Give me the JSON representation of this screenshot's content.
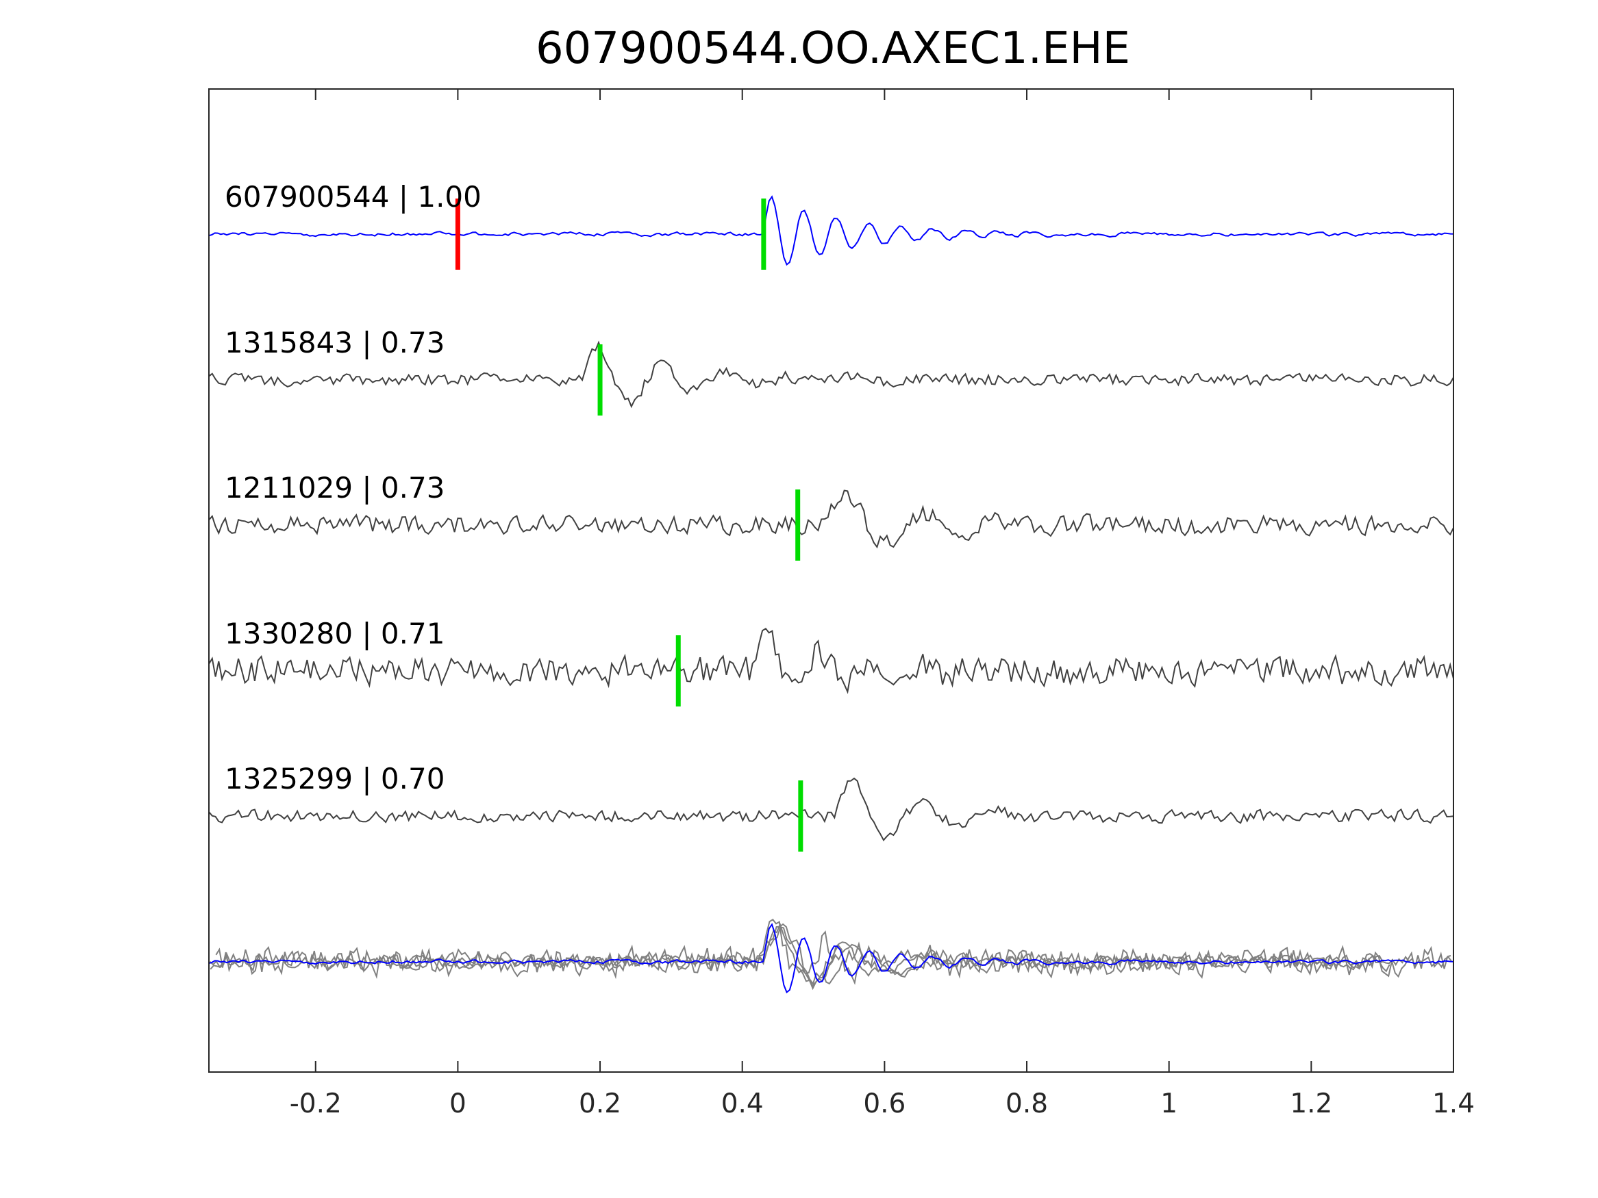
{
  "chart_data": {
    "type": "line",
    "title": "607900544.OO.AXEC1.EHE",
    "xlabel": "",
    "ylabel": "",
    "xlim": [
      -0.35,
      1.4
    ],
    "xticks": [
      -0.2,
      0,
      0.2,
      0.4,
      0.6,
      0.8,
      1,
      1.2,
      1.4
    ],
    "xtick_labels": [
      "-0.2",
      "0",
      "0.2",
      "0.4",
      "0.6",
      "0.8",
      "1",
      "1.2",
      "1.4"
    ],
    "grid": false,
    "legend": "none",
    "colors": {
      "template": "#0000ff",
      "match": "#404040",
      "overlay": "#808080",
      "origin_pick": "#ff0000",
      "phase_pick": "#00dd00",
      "axes": "#262626"
    },
    "traces": [
      {
        "id": "607900544",
        "score": "1.00",
        "label": "607900544 | 1.00",
        "kind": "template",
        "pick": 0.43,
        "origin_pick": 0.0,
        "arrival": 0.43,
        "freq": 22,
        "seed": 11
      },
      {
        "id": "1315843",
        "score": "0.73",
        "label": "1315843 | 0.73",
        "kind": "match",
        "pick": 0.2,
        "arrival": 0.175,
        "freq": 11,
        "seed": 23
      },
      {
        "id": "1211029",
        "score": "0.73",
        "label": "1211029 | 0.73",
        "kind": "match",
        "pick": 0.478,
        "arrival": 0.52,
        "freq": 9,
        "seed": 37
      },
      {
        "id": "1330280",
        "score": "0.71",
        "label": "1330280 | 0.71",
        "kind": "match",
        "pick": 0.31,
        "arrival": 0.42,
        "freq": 14,
        "seed": 51
      },
      {
        "id": "1325299",
        "score": "0.70",
        "label": "1325299 | 0.70",
        "kind": "match",
        "pick": 0.482,
        "arrival": 0.53,
        "freq": 10,
        "seed": 67
      }
    ],
    "overlay": {
      "description_shown": false
    }
  }
}
